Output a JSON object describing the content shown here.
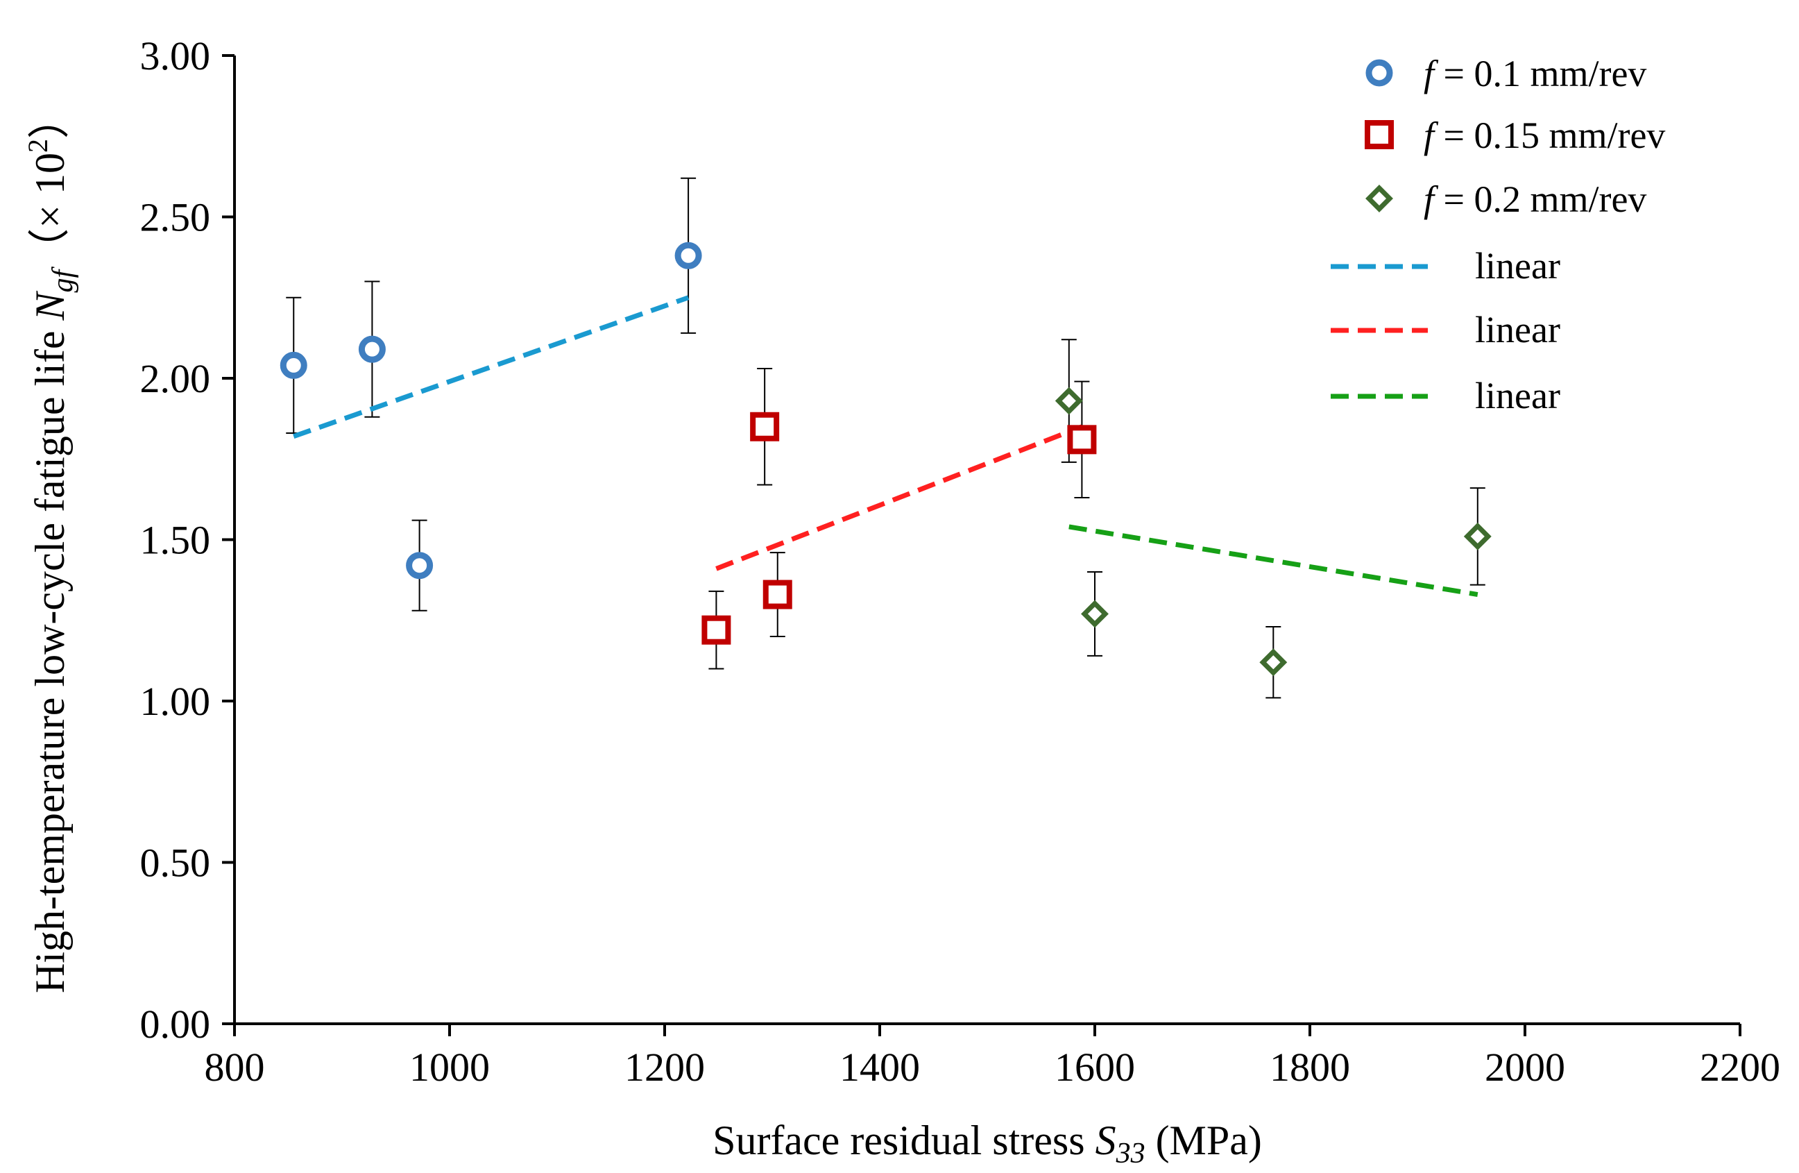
{
  "chart_data": {
    "type": "scatter",
    "xlabel": "Surface residual stress S33 (MPa)",
    "xlabel_parts": {
      "prefix": "Surface residual stress ",
      "symbol": "S",
      "subscript": "33",
      "suffix": " (MPa)"
    },
    "ylabel": "High-temperature low-cycle fatigue life Ngf (× 10^2)",
    "ylabel_parts": {
      "prefix": "High-temperature low-cycle fatigue life ",
      "symbol": "N",
      "subscript": "gf",
      "suffix_open": "（× 10",
      "superscript": "2",
      "suffix_close": "）"
    },
    "xlim": [
      800,
      2200
    ],
    "ylim": [
      0,
      3
    ],
    "x_ticks": [
      "800",
      "1000",
      "1200",
      "1400",
      "1600",
      "1800",
      "2000",
      "2200"
    ],
    "y_ticks": [
      "0.00",
      "0.50",
      "1.00",
      "1.50",
      "2.00",
      "2.50",
      "3.00"
    ],
    "grid": false,
    "legend_position": "top-right",
    "series": [
      {
        "name": "f = 0.1 mm/rev",
        "label_italic": "f",
        "label_rest": " = 0.1 mm/rev",
        "marker": "circle",
        "color": "#3f7ec0",
        "points": [
          {
            "x": 855,
            "y": 2.04,
            "err": 0.21
          },
          {
            "x": 928,
            "y": 2.09,
            "err": 0.21
          },
          {
            "x": 972,
            "y": 1.42,
            "err": 0.14
          },
          {
            "x": 1222,
            "y": 2.38,
            "err": 0.24
          }
        ]
      },
      {
        "name": "f = 0.15 mm/rev",
        "label_italic": "f",
        "label_rest": " = 0.15 mm/rev",
        "marker": "square",
        "color": "#c00000",
        "points": [
          {
            "x": 1248,
            "y": 1.22,
            "err": 0.12
          },
          {
            "x": 1293,
            "y": 1.85,
            "err": 0.18
          },
          {
            "x": 1305,
            "y": 1.33,
            "err": 0.13
          },
          {
            "x": 1588,
            "y": 1.81,
            "err": 0.18
          }
        ]
      },
      {
        "name": "f = 0.2 mm/rev",
        "label_italic": "f",
        "label_rest": " = 0.2 mm/rev",
        "marker": "diamond",
        "color": "#3e6b2e",
        "points": [
          {
            "x": 1576,
            "y": 1.93,
            "err": 0.19
          },
          {
            "x": 1600,
            "y": 1.27,
            "err": 0.13
          },
          {
            "x": 1766,
            "y": 1.12,
            "err": 0.11
          },
          {
            "x": 1956,
            "y": 1.51,
            "err": 0.15
          }
        ]
      }
    ],
    "trendlines": [
      {
        "name": "linear",
        "color": "#1a9ad0",
        "x": [
          855,
          1222
        ],
        "y": [
          1.82,
          2.25
        ]
      },
      {
        "name": "linear",
        "color": "#ff2020",
        "x": [
          1248,
          1588
        ],
        "y": [
          1.41,
          1.85
        ]
      },
      {
        "name": "linear",
        "color": "#16a016",
        "x": [
          1576,
          1956
        ],
        "y": [
          1.54,
          1.33
        ]
      }
    ]
  }
}
